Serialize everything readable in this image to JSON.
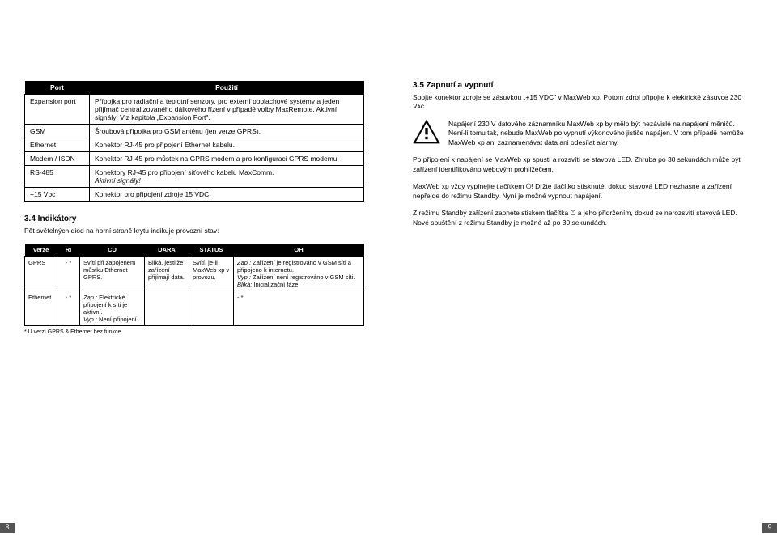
{
  "left": {
    "portTable": {
      "headers": [
        "Port",
        "Použití"
      ],
      "rows": [
        {
          "port": "Expansion port",
          "use": "Přípojka pro radiační a teplotní senzory, pro externí poplachové systémy a jeden přijímač centralizovaného dálkového řízení v případě volby MaxRemote. Aktivní signály! Viz kapitola „Expansion Port\"."
        },
        {
          "port": "GSM",
          "use": "Šroubová přípojka pro GSM anténu (jen verze GPRS)."
        },
        {
          "port": "Ethernet",
          "use": "Konektor RJ-45 pro připojení Ethernet kabelu."
        },
        {
          "port": "Modem / ISDN",
          "use": "Konektor RJ-45 pro můstek na GPRS modem a pro konfiguraci GPRS modemu."
        },
        {
          "port": "RS-485",
          "use": "Konektory RJ-45 pro připojení síťového kabelu MaxComm.",
          "note": "Aktivní signály!"
        },
        {
          "port": "+15 Vᴅᴄ",
          "use": "Konektor pro připojení zdroje 15 VDC."
        }
      ]
    },
    "section34": {
      "title": "3.4 Indikátory",
      "intro": "Pět světelných diod na horní straně krytu indikuje provozní stav:"
    },
    "ledTable": {
      "headers": [
        "Verze",
        "RI",
        "CD",
        "DARA",
        "STATUS",
        "OH"
      ],
      "rows": [
        {
          "c1": "GPRS",
          "c2": "- *",
          "c3": "Svítí při zapojeném můstku Ethernet GPRS.",
          "c4": "Bliká, jestliže zařízení přijímají data.",
          "c5": "Svítí, je-li MaxWeb xp v provozu.",
          "c6": "Zap.: Zařízení je registrováno v GSM síti a připojeno k internetu.\nVyp.: Zařízení není registrováno v GSM síti.\nBliká: Inicializační fáze"
        },
        {
          "c1": "Ethernet",
          "c2": "- *",
          "c3": "Zap.: Elektrické připojení k síti je aktivní.\nVyp.: Není připojení.",
          "c4": "",
          "c5": "",
          "c6": "- *"
        }
      ],
      "footnote": "* U verzí GPRS & Ethernet bez funkce"
    },
    "pageNum": "8"
  },
  "right": {
    "section35": {
      "title": "3.5 Zapnutí a vypnutí",
      "p1": "Spojte konektor zdroje se zásuvkou „+15 VDC\" v MaxWeb xp. Potom zdroj připojte k elektrické zásuvce 230 Vᴀᴄ.",
      "warn": "Napájení 230 V datového záznamníku MaxWeb xp by mělo být nezávislé na napájení měničů. Není-li tomu tak, nebude MaxWeb po vypnutí výkonového jističe napájen. V tom případě nemůže MaxWeb xp ani zaznamenávat data ani odesílat alarmy.",
      "p2": "Po připojení k napájení se MaxWeb xp spustí a rozsvítí se stavová LED. Zhruba po 30 sekundách může být zařízení identifikováno webovým prohlížečem.",
      "p3a": "MaxWeb xp vždy vypínejte tlačítkem ",
      "p3b": "! Držte tlačítko stisknuté, dokud stavová LED nezhasne a zařízení nepřejde do režimu Standby. Nyní je možné vypnout napájení.",
      "p4a": "Z režimu Standby zařízení zapnete stiskem tlačítka ",
      "p4b": " a jeho přidržením, dokud se nerozsvítí stavová LED. Nové spuštění z režimu Standby je možné až po 30 sekundách."
    },
    "pageNum": "9"
  },
  "colors": {
    "headerBg": "#000000",
    "headerFg": "#ffffff",
    "pageNumBg": "#555555"
  }
}
